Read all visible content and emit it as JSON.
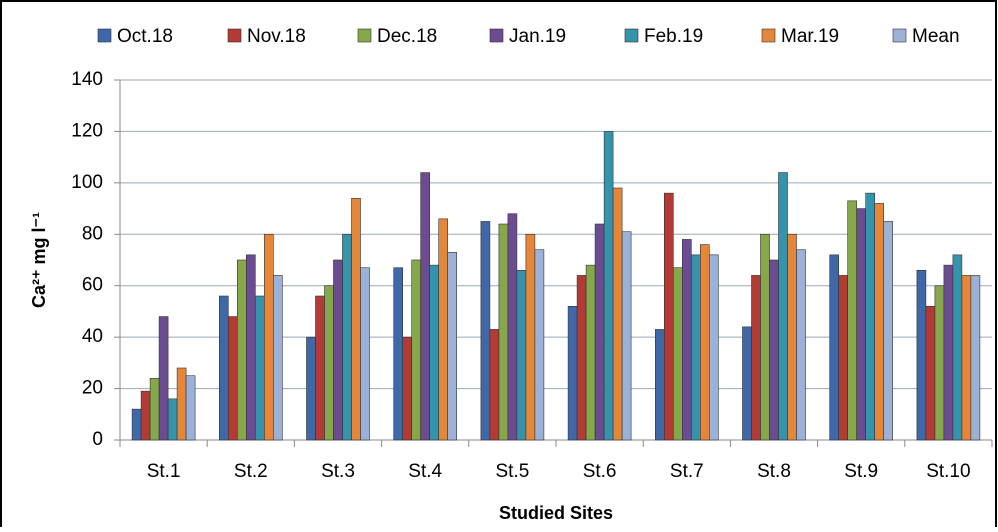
{
  "chart_data": {
    "type": "bar",
    "x_label": "Studied Sites",
    "y_label": "Ca²⁺ mg l⁻¹",
    "categories": [
      "St.1",
      "St.2",
      "St.3",
      "St.4",
      "St.5",
      "St.6",
      "St.7",
      "St.8",
      "St.9",
      "St.10"
    ],
    "series": [
      {
        "name": "Oct.18",
        "color": "#3f68a8",
        "values": [
          12,
          56,
          40,
          67,
          85,
          52,
          43,
          44,
          72,
          66
        ]
      },
      {
        "name": "Nov.18",
        "color": "#b23b35",
        "values": [
          19,
          48,
          56,
          40,
          43,
          64,
          96,
          64,
          64,
          52
        ]
      },
      {
        "name": "Dec.18",
        "color": "#86a84a",
        "values": [
          24,
          70,
          60,
          70,
          84,
          68,
          67,
          80,
          93,
          60
        ]
      },
      {
        "name": "Jan.19",
        "color": "#6b4c91",
        "values": [
          48,
          72,
          70,
          104,
          88,
          84,
          78,
          70,
          90,
          68
        ]
      },
      {
        "name": "Feb.19",
        "color": "#3594ab",
        "values": [
          16,
          56,
          80,
          68,
          66,
          120,
          72,
          104,
          96,
          72
        ]
      },
      {
        "name": "Mar.19",
        "color": "#e4873a",
        "values": [
          28,
          80,
          94,
          86,
          80,
          98,
          76,
          80,
          92,
          64
        ]
      },
      {
        "name": "Mean",
        "color": "#9bb1d8",
        "values": [
          25,
          64,
          67,
          73,
          74,
          81,
          72,
          74,
          85,
          64
        ]
      }
    ],
    "ylim": [
      0,
      140
    ],
    "yticks": [
      0,
      20,
      40,
      60,
      80,
      100,
      120,
      140
    ],
    "grid": true,
    "legend": "top"
  }
}
